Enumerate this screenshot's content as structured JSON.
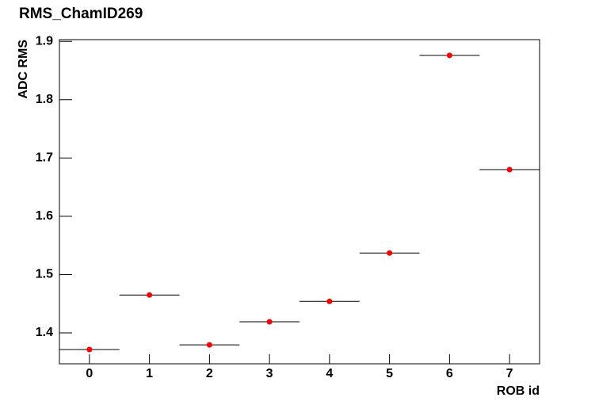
{
  "chart_data": {
    "type": "scatter",
    "title": "RMS_ChamID269",
    "x_label": "ROB id",
    "y_label": "ADC RMS",
    "x": [
      0,
      1,
      2,
      3,
      4,
      5,
      6,
      7
    ],
    "series": [
      {
        "color": "#ff0000",
        "values": [
          1.3715,
          1.465,
          1.3795,
          1.419,
          1.454,
          1.537,
          1.876,
          1.68
        ],
        "xerr": 0.5
      }
    ],
    "xlim": [
      -0.5,
      7.5
    ],
    "xticks": [
      0,
      1,
      2,
      3,
      4,
      5,
      6,
      7
    ],
    "ylim": [
      1.347,
      1.903
    ],
    "yticks": [
      1.4,
      1.5,
      1.6,
      1.7,
      1.8,
      1.9
    ]
  }
}
